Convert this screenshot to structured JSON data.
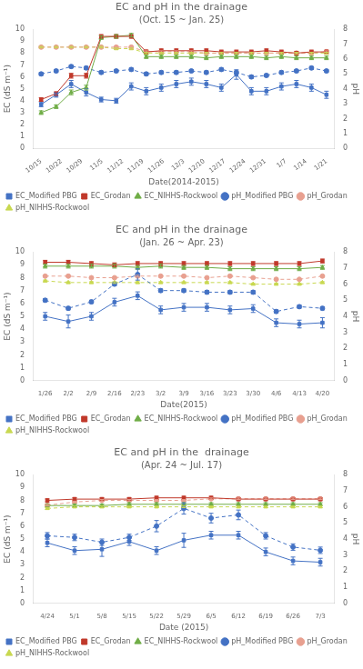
{
  "chart_data": [
    {
      "type": "line",
      "title": "EC and pH in the drainage",
      "subtitle": "(Oct. 15 ~ Jan. 25)",
      "xlabel": "Date(2014-2015)",
      "ylabel": "EC (dS m⁻¹)",
      "y2label": "pH",
      "x": [
        0,
        1,
        2,
        3,
        4,
        5,
        6,
        7,
        8,
        9,
        10,
        11,
        12,
        13,
        14,
        15,
        16,
        17,
        18,
        19
      ],
      "xlim": [
        -0.5,
        19.5
      ],
      "xticks": [
        {
          "value": 0,
          "label": "10/15"
        },
        {
          "value": 1.3571428571428572,
          "label": "10/22"
        },
        {
          "value": 2.7142857142857144,
          "label": "10/29"
        },
        {
          "value": 4.071428571428571,
          "label": "11/5"
        },
        {
          "value": 5.428571428571429,
          "label": "11/12"
        },
        {
          "value": 6.785714285714286,
          "label": "11/19"
        },
        {
          "value": 8.142857142857142,
          "label": "11/26"
        },
        {
          "value": 9.5,
          "label": "12/3"
        },
        {
          "value": 10.857142857142858,
          "label": "12/10"
        },
        {
          "value": 12.214285714285714,
          "label": "12/17"
        },
        {
          "value": 13.571428571428571,
          "label": "12/24"
        },
        {
          "value": 14.928571428571429,
          "label": "12/31"
        },
        {
          "value": 16.285714285714285,
          "label": "1/7"
        },
        {
          "value": 17.642857142857142,
          "label": "1/14"
        },
        {
          "value": 19,
          "label": "1/21"
        }
      ],
      "ylim": [
        0,
        10
      ],
      "yticks": [
        0,
        1,
        2,
        3,
        4,
        5,
        6,
        7,
        8,
        9,
        10
      ],
      "y2lim": [
        0,
        8
      ],
      "y2ticks": [
        0,
        1,
        2,
        3,
        4,
        5,
        6,
        7,
        8
      ],
      "grid": false,
      "legend": "lower left",
      "series": [
        {
          "name": "EC_Modified PBG",
          "color": "#4472C4",
          "marker": "square",
          "line_style": "solid",
          "values": [
            3.7,
            4.5,
            5.4,
            4.7,
            4.1,
            4.0,
            5.2,
            4.8,
            5.1,
            5.4,
            5.6,
            5.4,
            5.1,
            6.2,
            4.8,
            4.8,
            5.2,
            5.4,
            5.1,
            4.5
          ],
          "errors": [
            0.2,
            0.2,
            0.3,
            0.3,
            0.2,
            0.2,
            0.3,
            0.3,
            0.3,
            0.3,
            0.3,
            0.3,
            0.3,
            0.4,
            0.3,
            0.3,
            0.3,
            0.3,
            0.3,
            0.3
          ]
        },
        {
          "name": "EC_Grodan",
          "color": "#C0392B",
          "marker": "square",
          "line_style": "solid",
          "values": [
            4.1,
            4.6,
            6.1,
            6.1,
            9.4,
            9.4,
            9.4,
            8.1,
            8.2,
            8.2,
            8.2,
            8.2,
            8.1,
            8.1,
            8.1,
            8.2,
            8.1,
            8.0,
            8.1,
            8.1
          ],
          "errors": [
            0.15,
            0.15,
            0.2,
            0.2,
            0.15,
            0.15,
            0.15,
            0.15,
            0.15,
            0.15,
            0.15,
            0.15,
            0.15,
            0.15,
            0.15,
            0.15,
            0.15,
            0.15,
            0.15,
            0.15
          ]
        },
        {
          "name": "EC_NIHHS-Rockwool",
          "color": "#70AD47",
          "marker": "triangle",
          "line_style": "solid",
          "values": [
            3.0,
            3.5,
            4.7,
            5.1,
            9.3,
            9.4,
            9.5,
            7.7,
            7.7,
            7.7,
            7.7,
            7.6,
            7.7,
            7.7,
            7.7,
            7.6,
            7.7,
            7.6,
            7.6,
            7.6
          ],
          "errors": [
            0.15,
            0.15,
            0.2,
            0.2,
            0.15,
            0.15,
            0.15,
            0.15,
            0.15,
            0.15,
            0.15,
            0.15,
            0.15,
            0.15,
            0.15,
            0.15,
            0.15,
            0.15,
            0.15,
            0.15
          ]
        },
        {
          "name": "pH_Modified PBG",
          "color": "#4472C4",
          "marker": "circle",
          "line_style": "dashed",
          "axis": "y2",
          "values": [
            5.0,
            5.2,
            5.5,
            5.4,
            5.1,
            5.2,
            5.3,
            5.0,
            5.1,
            5.1,
            5.2,
            5.1,
            5.3,
            5.1,
            4.8,
            4.9,
            5.1,
            5.2,
            5.4,
            5.2
          ],
          "errors": [
            0.1,
            0.1,
            0.1,
            0.1,
            0.1,
            0.1,
            0.1,
            0.1,
            0.1,
            0.1,
            0.1,
            0.1,
            0.1,
            0.1,
            0.1,
            0.1,
            0.1,
            0.1,
            0.1,
            0.1
          ]
        },
        {
          "name": "pH_Grodan",
          "color": "#E8A090",
          "marker": "circle",
          "line_style": "dashed",
          "axis": "y2",
          "values": [
            6.8,
            6.8,
            6.8,
            6.8,
            6.8,
            6.8,
            6.8,
            6.5,
            6.5,
            6.5,
            6.5,
            6.4,
            6.4,
            6.4,
            6.4,
            6.4,
            6.4,
            6.4,
            6.4,
            6.5
          ],
          "errors": [
            0.05,
            0.05,
            0.05,
            0.05,
            0.05,
            0.05,
            0.05,
            0.05,
            0.05,
            0.05,
            0.05,
            0.05,
            0.05,
            0.05,
            0.05,
            0.05,
            0.05,
            0.05,
            0.05,
            0.05
          ]
        },
        {
          "name": "pH_NIHHS-Rockwool",
          "color": "#C8D850",
          "marker": "triangle",
          "line_style": "dashed",
          "axis": "y2",
          "values": [
            6.8,
            6.8,
            6.8,
            6.8,
            6.8,
            6.7,
            6.7,
            6.4,
            6.4,
            6.4,
            6.4,
            6.4,
            6.4,
            6.4,
            6.4,
            6.4,
            6.4,
            6.4,
            6.4,
            6.4
          ],
          "errors": [
            0.05,
            0.05,
            0.05,
            0.05,
            0.05,
            0.05,
            0.05,
            0.05,
            0.05,
            0.05,
            0.05,
            0.05,
            0.05,
            0.05,
            0.05,
            0.05,
            0.05,
            0.05,
            0.05,
            0.05
          ]
        }
      ]
    },
    {
      "type": "line",
      "title": "EC and pH in the drainage",
      "subtitle": "(Jan. 26 ~ Apr. 23)",
      "xlabel": "Date(2015)",
      "ylabel": "EC (dS m⁻¹)",
      "y2label": "pH",
      "x": [
        0,
        1,
        2,
        3,
        4,
        5,
        6,
        7,
        8,
        9,
        10,
        11,
        12
      ],
      "xlim": [
        -0.5,
        12.5
      ],
      "xticks": [
        {
          "value": 0,
          "label": "1/26"
        },
        {
          "value": 1,
          "label": "2/2"
        },
        {
          "value": 2,
          "label": "2/9"
        },
        {
          "value": 3,
          "label": "2/16"
        },
        {
          "value": 4,
          "label": "2/23"
        },
        {
          "value": 5,
          "label": "3/2"
        },
        {
          "value": 6,
          "label": "3/9"
        },
        {
          "value": 7,
          "label": "3/16"
        },
        {
          "value": 8,
          "label": "3/23"
        },
        {
          "value": 9,
          "label": "3/30"
        },
        {
          "value": 10,
          "label": "4/6"
        },
        {
          "value": 11,
          "label": "4/13"
        },
        {
          "value": 12,
          "label": "4/20"
        }
      ],
      "ylim": [
        0,
        10
      ],
      "yticks": [
        0,
        1,
        2,
        3,
        4,
        5,
        6,
        7,
        8,
        9,
        10
      ],
      "y2lim": [
        0,
        8
      ],
      "y2ticks": [
        0,
        1,
        2,
        3,
        4,
        5,
        6,
        7,
        8
      ],
      "grid": false,
      "legend": "lower left",
      "series": [
        {
          "name": "EC_Modified PBG",
          "color": "#4472C4",
          "marker": "square",
          "line_style": "solid",
          "values": [
            5.0,
            4.6,
            5.0,
            6.1,
            6.6,
            5.5,
            5.7,
            5.7,
            5.5,
            5.6,
            4.5,
            4.4,
            4.5
          ],
          "errors": [
            0.3,
            0.5,
            0.3,
            0.3,
            0.3,
            0.3,
            0.3,
            0.3,
            0.3,
            0.3,
            0.3,
            0.3,
            0.4
          ]
        },
        {
          "name": "EC_Grodan",
          "color": "#C0392B",
          "marker": "square",
          "line_style": "solid",
          "values": [
            9.2,
            9.2,
            9.1,
            9.0,
            9.1,
            9.1,
            9.1,
            9.1,
            9.1,
            9.1,
            9.1,
            9.1,
            9.3
          ],
          "errors": [
            0.15,
            0.15,
            0.15,
            0.15,
            0.15,
            0.15,
            0.15,
            0.15,
            0.15,
            0.15,
            0.15,
            0.15,
            0.15
          ]
        },
        {
          "name": "EC_NIHHS-Rockwool",
          "color": "#70AD47",
          "marker": "triangle",
          "line_style": "solid",
          "values": [
            8.9,
            8.9,
            8.9,
            8.9,
            8.8,
            8.9,
            8.8,
            8.8,
            8.7,
            8.7,
            8.7,
            8.7,
            8.8
          ],
          "errors": [
            0.15,
            0.15,
            0.15,
            0.15,
            0.15,
            0.15,
            0.15,
            0.15,
            0.15,
            0.15,
            0.15,
            0.15,
            0.15
          ]
        },
        {
          "name": "pH_Modified PBG",
          "color": "#4472C4",
          "marker": "circle",
          "line_style": "dashed",
          "axis": "y2",
          "values": [
            5.0,
            4.5,
            4.9,
            6.0,
            6.6,
            5.6,
            5.6,
            5.5,
            5.5,
            5.5,
            4.3,
            4.6,
            4.5
          ],
          "errors": [
            0.1,
            0.1,
            0.1,
            0.1,
            0.35,
            0.1,
            0.1,
            0.1,
            0.1,
            0.1,
            0.1,
            0.1,
            0.1
          ]
        },
        {
          "name": "pH_Grodan",
          "color": "#E8A090",
          "marker": "circle",
          "line_style": "dashed",
          "axis": "y2",
          "values": [
            6.5,
            6.5,
            6.4,
            6.4,
            6.5,
            6.5,
            6.5,
            6.4,
            6.5,
            6.4,
            6.3,
            6.3,
            6.5
          ],
          "errors": [
            0.05,
            0.05,
            0.05,
            0.05,
            0.05,
            0.05,
            0.05,
            0.05,
            0.05,
            0.05,
            0.05,
            0.05,
            0.05
          ]
        },
        {
          "name": "pH_NIHHS-Rockwool",
          "color": "#C8D850",
          "marker": "triangle",
          "line_style": "dashed",
          "axis": "y2",
          "values": [
            6.2,
            6.1,
            6.1,
            6.1,
            6.1,
            6.1,
            6.1,
            6.1,
            6.1,
            6.0,
            6.0,
            6.0,
            6.1
          ],
          "errors": [
            0.05,
            0.05,
            0.05,
            0.05,
            0.05,
            0.05,
            0.05,
            0.05,
            0.05,
            0.05,
            0.05,
            0.05,
            0.05
          ]
        }
      ]
    },
    {
      "type": "line",
      "title": "EC and pH in the  drainage",
      "subtitle": "(Apr. 24 ~ Jul. 17)",
      "xlabel": "Date (2015)",
      "ylabel": "EC (dS m⁻¹)",
      "y2label": "pH",
      "x": [
        0,
        1,
        2,
        3,
        4,
        5,
        6,
        7,
        8,
        9,
        10
      ],
      "xlim": [
        -0.5,
        10.5
      ],
      "xticks": [
        {
          "value": 0,
          "label": "4/24"
        },
        {
          "value": 1,
          "label": "5/1"
        },
        {
          "value": 2,
          "label": "5/8"
        },
        {
          "value": 3,
          "label": "5/15"
        },
        {
          "value": 4,
          "label": "5/22"
        },
        {
          "value": 5,
          "label": "5/29"
        },
        {
          "value": 6,
          "label": "6/5"
        },
        {
          "value": 7,
          "label": "6/12"
        },
        {
          "value": 8,
          "label": "6/19"
        },
        {
          "value": 9,
          "label": "6/26"
        },
        {
          "value": 10,
          "label": "7/3"
        }
      ],
      "ylim": [
        0,
        10
      ],
      "yticks": [
        0,
        1,
        2,
        3,
        4,
        5,
        6,
        7,
        8,
        9,
        10
      ],
      "y2lim": [
        0,
        8
      ],
      "y2ticks": [
        0,
        1,
        2,
        3,
        4,
        5,
        6,
        7,
        8
      ],
      "grid": false,
      "legend": "lower left",
      "series": [
        {
          "name": "EC_Modified PBG",
          "color": "#4472C4",
          "marker": "square",
          "line_style": "solid",
          "values": [
            4.7,
            4.1,
            4.2,
            4.8,
            4.1,
            4.9,
            5.3,
            5.3,
            4.0,
            3.3,
            3.2
          ],
          "errors": [
            0.3,
            0.3,
            0.55,
            0.3,
            0.3,
            0.55,
            0.3,
            0.3,
            0.3,
            0.3,
            0.3
          ]
        },
        {
          "name": "EC_Grodan",
          "color": "#C0392B",
          "marker": "square",
          "line_style": "solid",
          "values": [
            8.0,
            8.1,
            8.1,
            8.1,
            8.2,
            8.2,
            8.2,
            8.1,
            8.1,
            8.1,
            8.1
          ],
          "errors": [
            0.12,
            0.12,
            0.12,
            0.12,
            0.12,
            0.12,
            0.12,
            0.12,
            0.12,
            0.12,
            0.12
          ]
        },
        {
          "name": "EC_NIHHS-Rockwool",
          "color": "#70AD47",
          "marker": "triangle",
          "line_style": "solid",
          "values": [
            7.6,
            7.6,
            7.6,
            7.7,
            7.7,
            7.7,
            7.7,
            7.7,
            7.7,
            7.7,
            7.7
          ],
          "errors": [
            0.12,
            0.12,
            0.12,
            0.12,
            0.12,
            0.12,
            0.12,
            0.12,
            0.12,
            0.12,
            0.12
          ]
        },
        {
          "name": "pH_Modified PBG",
          "color": "#4472C4",
          "marker": "circle",
          "line_style": "dashed",
          "axis": "y2",
          "values": [
            4.2,
            4.1,
            3.8,
            4.1,
            4.8,
            5.9,
            5.3,
            5.5,
            4.2,
            3.5,
            3.3
          ],
          "errors": [
            0.2,
            0.2,
            0.2,
            0.2,
            0.35,
            0.35,
            0.3,
            0.3,
            0.2,
            0.2,
            0.2
          ]
        },
        {
          "name": "pH_Grodan",
          "color": "#E8A090",
          "marker": "circle",
          "line_style": "dashed",
          "axis": "y2",
          "values": [
            6.1,
            6.3,
            6.4,
            6.4,
            6.4,
            6.4,
            6.5,
            6.5,
            6.5,
            6.5,
            6.5
          ],
          "errors": [
            0.05,
            0.05,
            0.05,
            0.05,
            0.05,
            0.05,
            0.05,
            0.05,
            0.05,
            0.05,
            0.05
          ]
        },
        {
          "name": "pH_NIHHS-Rockwool",
          "color": "#C8D850",
          "marker": "triangle",
          "line_style": "dashed",
          "axis": "y2",
          "values": [
            5.9,
            6.0,
            6.0,
            6.0,
            6.0,
            6.0,
            6.0,
            6.0,
            6.0,
            6.0,
            6.0
          ],
          "errors": [
            0.05,
            0.05,
            0.05,
            0.05,
            0.05,
            0.05,
            0.05,
            0.05,
            0.05,
            0.05,
            0.05
          ]
        }
      ]
    }
  ]
}
